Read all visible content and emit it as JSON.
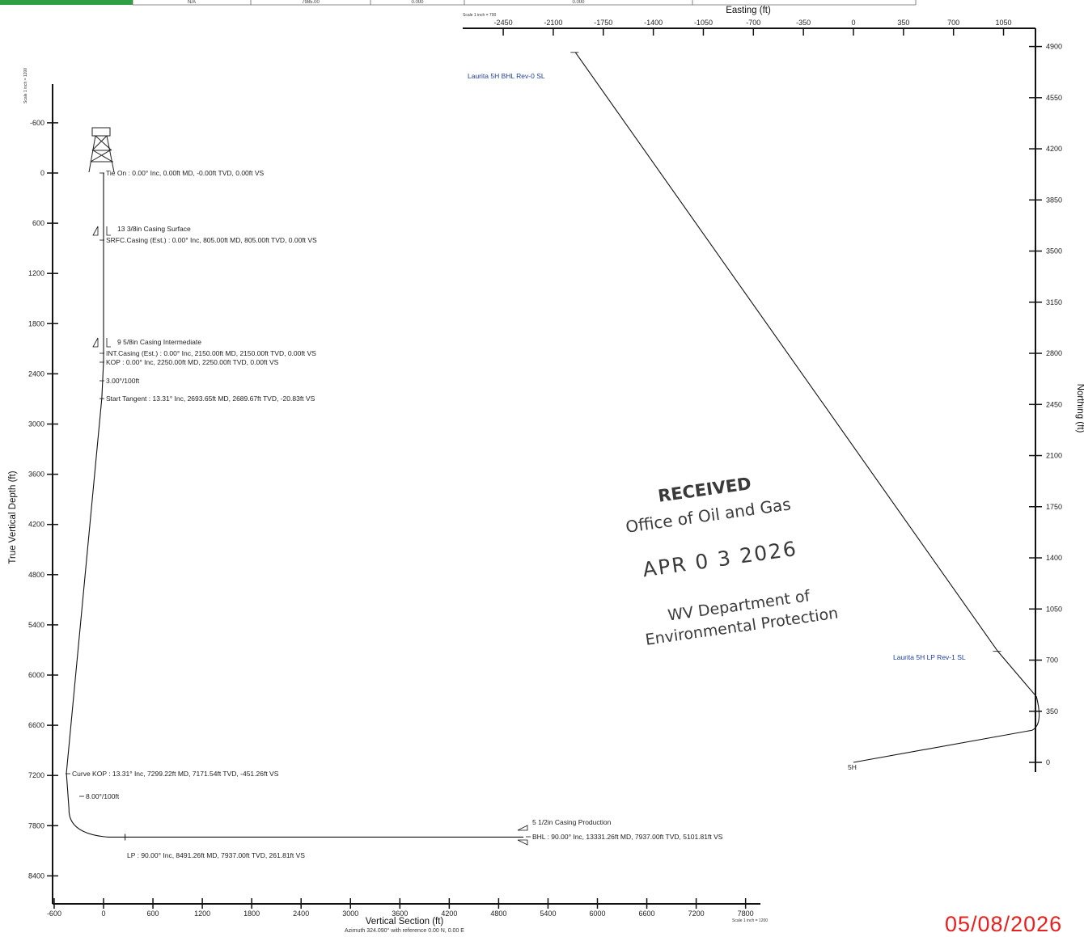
{
  "header": {
    "cells": [
      "N/A",
      "7985.00",
      "0.000",
      "0.000",
      ""
    ],
    "accent_color": "#2ea043"
  },
  "chart_data": [
    {
      "type": "line",
      "name": "vertical-section",
      "xlabel": "Vertical Section (ft)",
      "ylabel": "True Vertical Depth (ft)",
      "subtitle": "Azimuth 324.090° with reference 0.00 N, 0.00 E",
      "scale_x": "Scale 1 inch = 1200",
      "scale_y": "Scale 1 inch = 1200",
      "xlim": [
        -600,
        7800
      ],
      "ylim": [
        -600,
        8400
      ],
      "x_ticks": [
        -600,
        0,
        600,
        1200,
        1800,
        2400,
        3000,
        3600,
        4200,
        4800,
        5400,
        6000,
        6600,
        7200,
        7800
      ],
      "y_ticks": [
        -600,
        0,
        600,
        1200,
        1800,
        2400,
        3000,
        3600,
        4200,
        4800,
        5400,
        6000,
        6600,
        7200,
        7800,
        8400
      ],
      "path": [
        [
          0,
          0
        ],
        [
          0,
          805
        ],
        [
          0,
          2150
        ],
        [
          0,
          2250
        ],
        [
          -20.83,
          2689.67
        ],
        [
          -451.26,
          7171.54
        ],
        [
          -420,
          7600
        ],
        [
          -300,
          7820
        ],
        [
          261.81,
          7937
        ],
        [
          5101.81,
          7937
        ]
      ],
      "annotations": [
        {
          "x": 0,
          "y": 0,
          "text": "Tie On : 0.00° Inc, 0.00ft MD, -0.00ft TVD, 0.00ft VS"
        },
        {
          "x": 0,
          "y": 680,
          "text": "13 3/8in Casing Surface"
        },
        {
          "x": 0,
          "y": 805,
          "text": "SRFC.Casing (Est.) : 0.00° Inc, 805.00ft MD, 805.00ft TVD, 0.00ft VS"
        },
        {
          "x": 0,
          "y": 2030,
          "text": "9 5/8in Casing Intermediate"
        },
        {
          "x": 0,
          "y": 2150,
          "text": "INT.Casing (Est.) : 0.00° Inc, 2150.00ft MD, 2150.00ft TVD, 0.00ft VS"
        },
        {
          "x": 0,
          "y": 2250,
          "text": "KOP : 0.00° Inc, 2250.00ft MD, 2250.00ft TVD, 0.00ft VS"
        },
        {
          "x": 0,
          "y": 2460,
          "text": "3.00°/100ft"
        },
        {
          "x": -20.83,
          "y": 2689.67,
          "text": "Start Tangent  : 13.31° Inc, 2693.65ft MD, 2689.67ft TVD, -20.83ft VS"
        },
        {
          "x": -451.26,
          "y": 7171.54,
          "text": "Curve KOP : 13.31° Inc, 7299.22ft MD, 7171.54ft TVD, -451.26ft VS"
        },
        {
          "x": -300,
          "y": 7700,
          "text": "8.00°/100ft"
        },
        {
          "x": 261.81,
          "y": 8180,
          "text": "LP : 90.00° Inc, 8491.26ft MD, 7937.00ft TVD, 261.81ft VS"
        },
        {
          "x": 5101.81,
          "y": 7760,
          "text": "5 1/2in Casing Production"
        },
        {
          "x": 5101.81,
          "y": 7937,
          "text": "BHL : 90.00° Inc, 13331.26ft MD, 7937.00ft TVD, 5101.81ft VS"
        }
      ]
    },
    {
      "type": "line",
      "name": "plan-view",
      "xlabel": "Easting (ft)",
      "ylabel": "Northing (ft)",
      "scale_x": "Scale 1 inch = 700",
      "x_ticks": [
        -2450,
        -2100,
        -1750,
        -1400,
        -1050,
        -700,
        -350,
        0,
        350,
        700,
        1050
      ],
      "y_ticks": [
        0,
        350,
        700,
        1050,
        1400,
        1750,
        2100,
        2450,
        2800,
        3150,
        3500,
        3850,
        4200,
        4550,
        4900
      ],
      "path": [
        [
          0,
          0
        ],
        [
          1250,
          220
        ],
        [
          1300,
          300
        ],
        [
          1280,
          450
        ],
        [
          1010,
          760
        ],
        [
          -1945,
          4860
        ]
      ],
      "labels": [
        {
          "x": -1945,
          "y": 4860,
          "text": "Laurita 5H BHL Rev-0 SL"
        },
        {
          "x": 1010,
          "y": 760,
          "text": "Laurita 5H LP Rev-1 SL"
        },
        {
          "x": 0,
          "y": 0,
          "text": "5H"
        }
      ]
    }
  ],
  "stamp": {
    "line1": "RECEIVED",
    "line2": "Office of Oil and Gas",
    "line3": "APR 0 3 2026",
    "line4": "WV Department of",
    "line5": "Environmental Protection"
  },
  "footer_date": "05/08/2026",
  "colors": {
    "date_red": "#e8201e",
    "label_blue": "#1f3f9a"
  }
}
